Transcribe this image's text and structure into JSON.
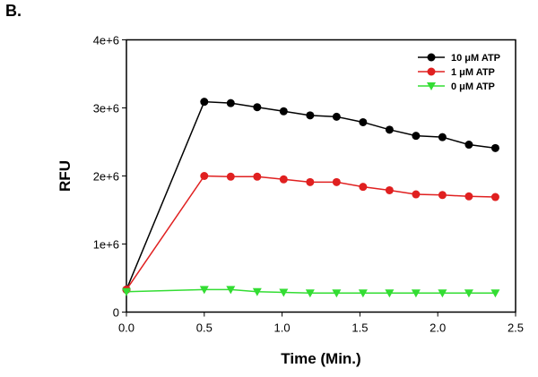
{
  "panel_label": "B.",
  "chart_data": {
    "type": "line",
    "title": "",
    "xlabel": "Time (Min.)",
    "ylabel": "RFU",
    "xlim": [
      0,
      2.5
    ],
    "ylim": [
      0,
      4000000
    ],
    "xticks": [
      "0.0",
      "0.5",
      "1.0",
      "1.5",
      "2.0",
      "2.5"
    ],
    "yticks": [
      "0",
      "1e+6",
      "2e+6",
      "3e+6",
      "4e+6"
    ],
    "grid": false,
    "legend_position": "top-right",
    "x": [
      0,
      0.5,
      0.67,
      0.84,
      1.01,
      1.18,
      1.35,
      1.52,
      1.69,
      1.86,
      2.03,
      2.2,
      2.37
    ],
    "series": [
      {
        "name": "10 μM ATP",
        "color": "#000000",
        "marker": "circle",
        "values": [
          330000,
          3090000,
          3070000,
          3010000,
          2950000,
          2890000,
          2870000,
          2790000,
          2680000,
          2590000,
          2570000,
          2460000,
          2410000
        ]
      },
      {
        "name": "1 μM ATP",
        "color": "#e02020",
        "marker": "circle",
        "values": [
          330000,
          2000000,
          1990000,
          1990000,
          1950000,
          1910000,
          1910000,
          1840000,
          1790000,
          1730000,
          1720000,
          1700000,
          1690000
        ]
      },
      {
        "name": "0 μM ATP",
        "color": "#33dd33",
        "marker": "triangle-down",
        "values": [
          300000,
          330000,
          330000,
          300000,
          290000,
          280000,
          280000,
          280000,
          280000,
          280000,
          280000,
          280000,
          280000
        ]
      }
    ]
  }
}
